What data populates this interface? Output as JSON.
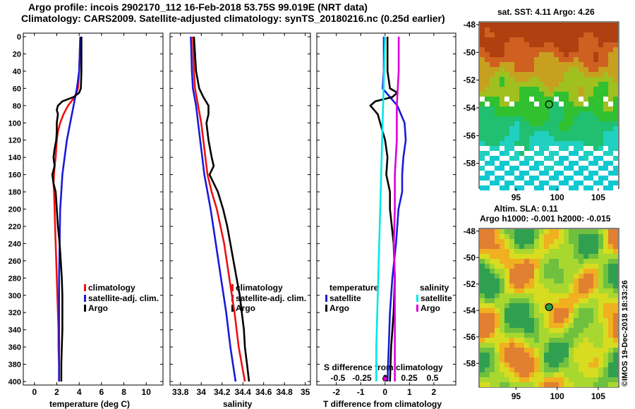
{
  "header": {
    "line1": "Argo profile: incois 2902170_112 16-Feb-2018 53.75S 99.019E (NRT data)",
    "line2": "Climatology: CARS2009. Satellite-adjusted climatology: synTS_20180216.nc (0.25d earlier)"
  },
  "colors": {
    "climatology": "#ee1111",
    "satellite": "#1a1ad8",
    "argo": "#000000",
    "salinity_sat": "#00e8e8",
    "salinity_argo": "#dd00dd"
  },
  "chart_data": [
    {
      "type": "line",
      "name": "temperature-profile",
      "xlabel": "temperature (deg C)",
      "ylabel": "",
      "xlim": [
        -1,
        11.5
      ],
      "ylim": [
        400,
        0
      ],
      "xticks": [
        "0",
        "2",
        "4",
        "6",
        "8",
        "10"
      ],
      "xtick_values": [
        0,
        2,
        4,
        6,
        8,
        10
      ],
      "yticks": [
        "0",
        "20",
        "40",
        "60",
        "80",
        "100",
        "120",
        "140",
        "160",
        "180",
        "200",
        "220",
        "240",
        "260",
        "280",
        "300",
        "320",
        "340",
        "360",
        "380",
        "400"
      ],
      "legend": [
        "climatology",
        "satellite-adj. clim.",
        "Argo"
      ],
      "series": [
        {
          "name": "climatology",
          "depth": [
            0,
            20,
            40,
            60,
            70,
            80,
            90,
            100,
            110,
            120,
            140,
            150,
            160,
            170,
            180,
            200,
            220,
            240,
            260,
            280,
            300,
            320,
            340,
            360,
            380,
            400
          ],
          "values": [
            4.1,
            4.05,
            4.0,
            3.9,
            3.6,
            3.0,
            2.6,
            2.3,
            2.1,
            2.0,
            1.9,
            1.8,
            1.75,
            1.7,
            1.75,
            1.8,
            1.85,
            1.9,
            1.95,
            2.0,
            2.05,
            2.1,
            2.15,
            2.15,
            2.2,
            2.2
          ]
        },
        {
          "name": "satellite-adj. clim.",
          "depth": [
            0,
            20,
            40,
            60,
            80,
            100,
            120,
            140,
            160,
            180,
            200,
            240,
            280,
            320,
            360,
            400
          ],
          "values": [
            4.1,
            4.05,
            4.0,
            3.8,
            3.5,
            3.2,
            2.9,
            2.7,
            2.5,
            2.4,
            2.3,
            2.25,
            2.2,
            2.2,
            2.2,
            2.2
          ]
        },
        {
          "name": "Argo",
          "depth": [
            0,
            20,
            40,
            60,
            65,
            70,
            75,
            80,
            85,
            90,
            95,
            100,
            110,
            120,
            130,
            140,
            150,
            160,
            170,
            180,
            200,
            220,
            240,
            260,
            280,
            300,
            320,
            340,
            360,
            380,
            400
          ],
          "values": [
            4.2,
            4.2,
            4.2,
            4.15,
            4.0,
            3.5,
            2.5,
            2.1,
            2.0,
            2.1,
            2.05,
            2.0,
            2.0,
            1.95,
            1.8,
            1.7,
            1.8,
            1.6,
            1.7,
            1.9,
            2.0,
            2.1,
            2.25,
            2.35,
            2.45,
            2.5,
            2.5,
            2.5,
            2.45,
            2.4,
            2.4
          ]
        }
      ]
    },
    {
      "type": "line",
      "name": "salinity-profile",
      "xlabel": "salinity",
      "xlim": [
        33.7,
        35.05
      ],
      "ylim": [
        400,
        0
      ],
      "xticks": [
        "33.8",
        "34",
        "34.2",
        "34.4",
        "34.6",
        "34.8",
        "35"
      ],
      "xtick_values": [
        33.8,
        34,
        34.2,
        34.4,
        34.6,
        34.8,
        35
      ],
      "legend": [
        "climatology",
        "satellite-adj. clim.",
        "Argo"
      ],
      "series": [
        {
          "name": "climatology",
          "depth": [
            0,
            40,
            60,
            80,
            100,
            120,
            140,
            160,
            180,
            200,
            240,
            280,
            320,
            360,
            400
          ],
          "values": [
            33.92,
            33.93,
            33.94,
            33.97,
            34.0,
            34.02,
            34.04,
            34.06,
            34.1,
            34.15,
            34.22,
            34.27,
            34.32,
            34.36,
            34.42
          ]
        },
        {
          "name": "satellite-adj. clim.",
          "depth": [
            0,
            40,
            60,
            80,
            100,
            120,
            140,
            160,
            180,
            200,
            240,
            280,
            320,
            360,
            400
          ],
          "values": [
            33.9,
            33.91,
            33.92,
            33.95,
            33.97,
            33.99,
            34.01,
            34.03,
            34.06,
            34.09,
            34.14,
            34.19,
            34.24,
            34.28,
            34.33
          ]
        },
        {
          "name": "Argo",
          "depth": [
            0,
            40,
            60,
            70,
            80,
            90,
            100,
            120,
            140,
            150,
            160,
            170,
            180,
            200,
            220,
            240,
            260,
            280,
            300,
            320,
            340,
            360,
            380,
            400
          ],
          "values": [
            33.93,
            33.95,
            33.98,
            34.02,
            34.07,
            34.07,
            34.05,
            34.07,
            34.1,
            34.12,
            34.08,
            34.12,
            34.16,
            34.21,
            34.25,
            34.28,
            34.31,
            34.34,
            34.37,
            34.39,
            34.41,
            34.42,
            34.44,
            34.46
          ]
        }
      ]
    },
    {
      "type": "line",
      "name": "difference-profile",
      "xlabel": "T difference from climatology",
      "xlabel_top": "S difference from climatology",
      "xlim": [
        -2.8,
        2.9
      ],
      "ylim": [
        400,
        0
      ],
      "xticks": [
        "-2",
        "-1",
        "0",
        "1",
        "2"
      ],
      "xtick_values": [
        -2,
        -1,
        0,
        1,
        2
      ],
      "sticks": [
        "-0.5",
        "-0.25",
        "0",
        "0.25",
        "0.5"
      ],
      "legend_temperature_title": "temperature",
      "legend_salinity_title": "salinity",
      "legend_temperature": [
        "satellite",
        "Argo"
      ],
      "legend_salinity": [
        "satellite",
        "Argo"
      ],
      "series": [
        {
          "name": "T satellite",
          "depth": [
            0,
            40,
            60,
            70,
            80,
            100,
            120,
            140,
            160,
            180,
            200,
            240,
            280,
            320,
            360,
            400
          ],
          "values": [
            -0.05,
            -0.05,
            -0.1,
            0.2,
            0.5,
            0.8,
            0.85,
            0.75,
            0.7,
            0.7,
            0.55,
            0.45,
            0.3,
            0.2,
            0.15,
            0.1
          ]
        },
        {
          "name": "T Argo",
          "depth": [
            0,
            40,
            60,
            65,
            70,
            75,
            80,
            90,
            100,
            110,
            120,
            140,
            160,
            180,
            200,
            240,
            280,
            320,
            360,
            400
          ],
          "values": [
            0.1,
            0.1,
            0.2,
            0.5,
            0.3,
            -0.4,
            -0.6,
            -0.3,
            -0.2,
            -0.1,
            0.0,
            0.1,
            0.05,
            0.2,
            0.2,
            0.35,
            0.4,
            0.35,
            0.25,
            0.2
          ]
        },
        {
          "name": "S satellite",
          "depth": [
            0,
            40,
            80,
            120,
            160,
            200,
            240,
            280,
            320,
            360,
            400
          ],
          "values": [
            0.0,
            -0.01,
            -0.02,
            -0.03,
            -0.04,
            -0.05,
            -0.06,
            -0.07,
            -0.08,
            -0.09,
            -0.09
          ]
        },
        {
          "name": "S Argo",
          "depth": [
            0,
            40,
            80,
            120,
            160,
            200,
            240,
            280,
            320,
            360,
            400
          ],
          "values": [
            0.14,
            0.14,
            0.12,
            0.12,
            0.1,
            0.1,
            0.09,
            0.1,
            0.1,
            0.1,
            0.1
          ]
        }
      ]
    },
    {
      "type": "heatmap",
      "name": "sst-map",
      "title": "sat. SST: 4.11 Argo: 4.26",
      "xticks": [
        "95",
        "100",
        "105"
      ],
      "yticks": [
        "-48",
        "-50",
        "-52",
        "-54",
        "-56",
        "-58"
      ],
      "xlim": [
        90.5,
        107.5
      ],
      "ylim": [
        -59.8,
        -47.8
      ],
      "marker": {
        "lon": 99.019,
        "lat": -53.75
      }
    },
    {
      "type": "heatmap",
      "name": "sla-map",
      "title": "Altim. SLA: 0.11",
      "subtitle": "Argo h1000: -0.001 h2000: -0.015",
      "xticks": [
        "95",
        "100",
        "105"
      ],
      "yticks": [
        "-48",
        "-50",
        "-52",
        "-54",
        "-56",
        "-58"
      ],
      "xlim": [
        90.5,
        107.5
      ],
      "ylim": [
        -59.8,
        -47.8
      ],
      "marker": {
        "lon": 99.019,
        "lat": -53.75
      }
    }
  ],
  "footer": {
    "credit": "©IMOS 19-Dec-2018 18:33:26"
  }
}
